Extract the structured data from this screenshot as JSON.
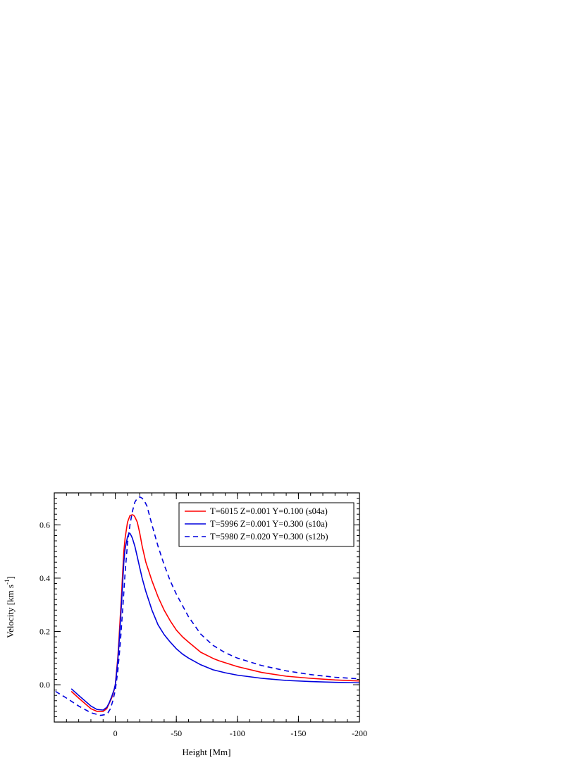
{
  "chart_data": {
    "type": "line",
    "xlabel": "Height [Mm]",
    "ylabel": {
      "base": "Velocity [km s",
      "sup": "-1",
      "close": "]"
    },
    "xlim": [
      50,
      -200
    ],
    "ylim": [
      -0.14,
      0.72
    ],
    "xticks": [
      0,
      -50,
      -100,
      -150,
      -200
    ],
    "xtick_labels": [
      "0",
      "-50",
      "-100",
      "-150",
      "-200"
    ],
    "yticks": [
      0.0,
      0.2,
      0.4,
      0.6
    ],
    "ytick_labels": [
      "0.0",
      "0.2",
      "0.4",
      "0.6"
    ],
    "grid": false,
    "legend_position": "top-right",
    "series": [
      {
        "name": "T=6015 Z=0.001 Y=0.100 (s04a)",
        "color": "#ff0000",
        "dash": "solid",
        "x": [
          36,
          30,
          20,
          15,
          10,
          7,
          5,
          3,
          1,
          0,
          -1,
          -2,
          -3,
          -4,
          -5,
          -6,
          -7,
          -8,
          -10,
          -12,
          -14,
          -15,
          -16,
          -18,
          -20,
          -22,
          -25,
          -30,
          -35,
          -40,
          -45,
          -50,
          -55,
          -60,
          -70,
          -80,
          -85,
          -100,
          -120,
          -140,
          -160,
          -180,
          -200
        ],
        "y": [
          -0.025,
          -0.05,
          -0.09,
          -0.1,
          -0.1,
          -0.09,
          -0.07,
          -0.05,
          -0.02,
          0.0,
          0.05,
          0.1,
          0.17,
          0.25,
          0.33,
          0.42,
          0.5,
          0.55,
          0.61,
          0.635,
          0.638,
          0.636,
          0.63,
          0.61,
          0.57,
          0.52,
          0.46,
          0.39,
          0.33,
          0.28,
          0.24,
          0.205,
          0.18,
          0.16,
          0.122,
          0.099,
          0.09,
          0.068,
          0.046,
          0.032,
          0.024,
          0.018,
          0.014
        ]
      },
      {
        "name": "T=5996 Z=0.001 Y=0.300 (s10a)",
        "color": "#0000dd",
        "dash": "solid",
        "x": [
          36,
          30,
          20,
          15,
          10,
          7,
          5,
          3,
          1,
          0,
          -1,
          -2,
          -3,
          -4,
          -5,
          -6,
          -7,
          -8,
          -10,
          -11,
          -12,
          -13,
          -14,
          -16,
          -18,
          -20,
          -22,
          -25,
          -30,
          -35,
          -40,
          -45,
          -50,
          -55,
          -60,
          -70,
          -80,
          -90,
          -100,
          -120,
          -140,
          -160,
          -180,
          -200
        ],
        "y": [
          -0.015,
          -0.04,
          -0.08,
          -0.093,
          -0.095,
          -0.085,
          -0.068,
          -0.045,
          -0.018,
          0.0,
          0.04,
          0.09,
          0.15,
          0.22,
          0.3,
          0.38,
          0.46,
          0.51,
          0.555,
          0.566,
          0.568,
          0.56,
          0.55,
          0.52,
          0.48,
          0.44,
          0.4,
          0.35,
          0.28,
          0.225,
          0.188,
          0.16,
          0.135,
          0.115,
          0.1,
          0.075,
          0.056,
          0.045,
          0.036,
          0.024,
          0.016,
          0.012,
          0.009,
          0.007
        ]
      },
      {
        "name": "T=5980 Z=0.020 Y=0.300 (s12b)",
        "color": "#0000dd",
        "dash": "dashed",
        "x": [
          49,
          40,
          30,
          20,
          12,
          8,
          6,
          4,
          2,
          0,
          -2,
          -4,
          -6,
          -8,
          -10,
          -12,
          -14,
          -16,
          -18,
          -20,
          -22,
          -24,
          -26,
          -30,
          -35,
          -40,
          -45,
          -50,
          -60,
          -70,
          -80,
          -90,
          -100,
          -120,
          -140,
          -160,
          -180,
          -200
        ],
        "y": [
          -0.025,
          -0.05,
          -0.08,
          -0.105,
          -0.115,
          -0.112,
          -0.105,
          -0.09,
          -0.06,
          -0.02,
          0.05,
          0.15,
          0.28,
          0.42,
          0.53,
          0.6,
          0.65,
          0.685,
          0.7,
          0.705,
          0.7,
          0.688,
          0.67,
          0.6,
          0.52,
          0.45,
          0.39,
          0.34,
          0.255,
          0.19,
          0.148,
          0.12,
          0.1,
          0.072,
          0.052,
          0.038,
          0.028,
          0.022
        ]
      }
    ]
  }
}
